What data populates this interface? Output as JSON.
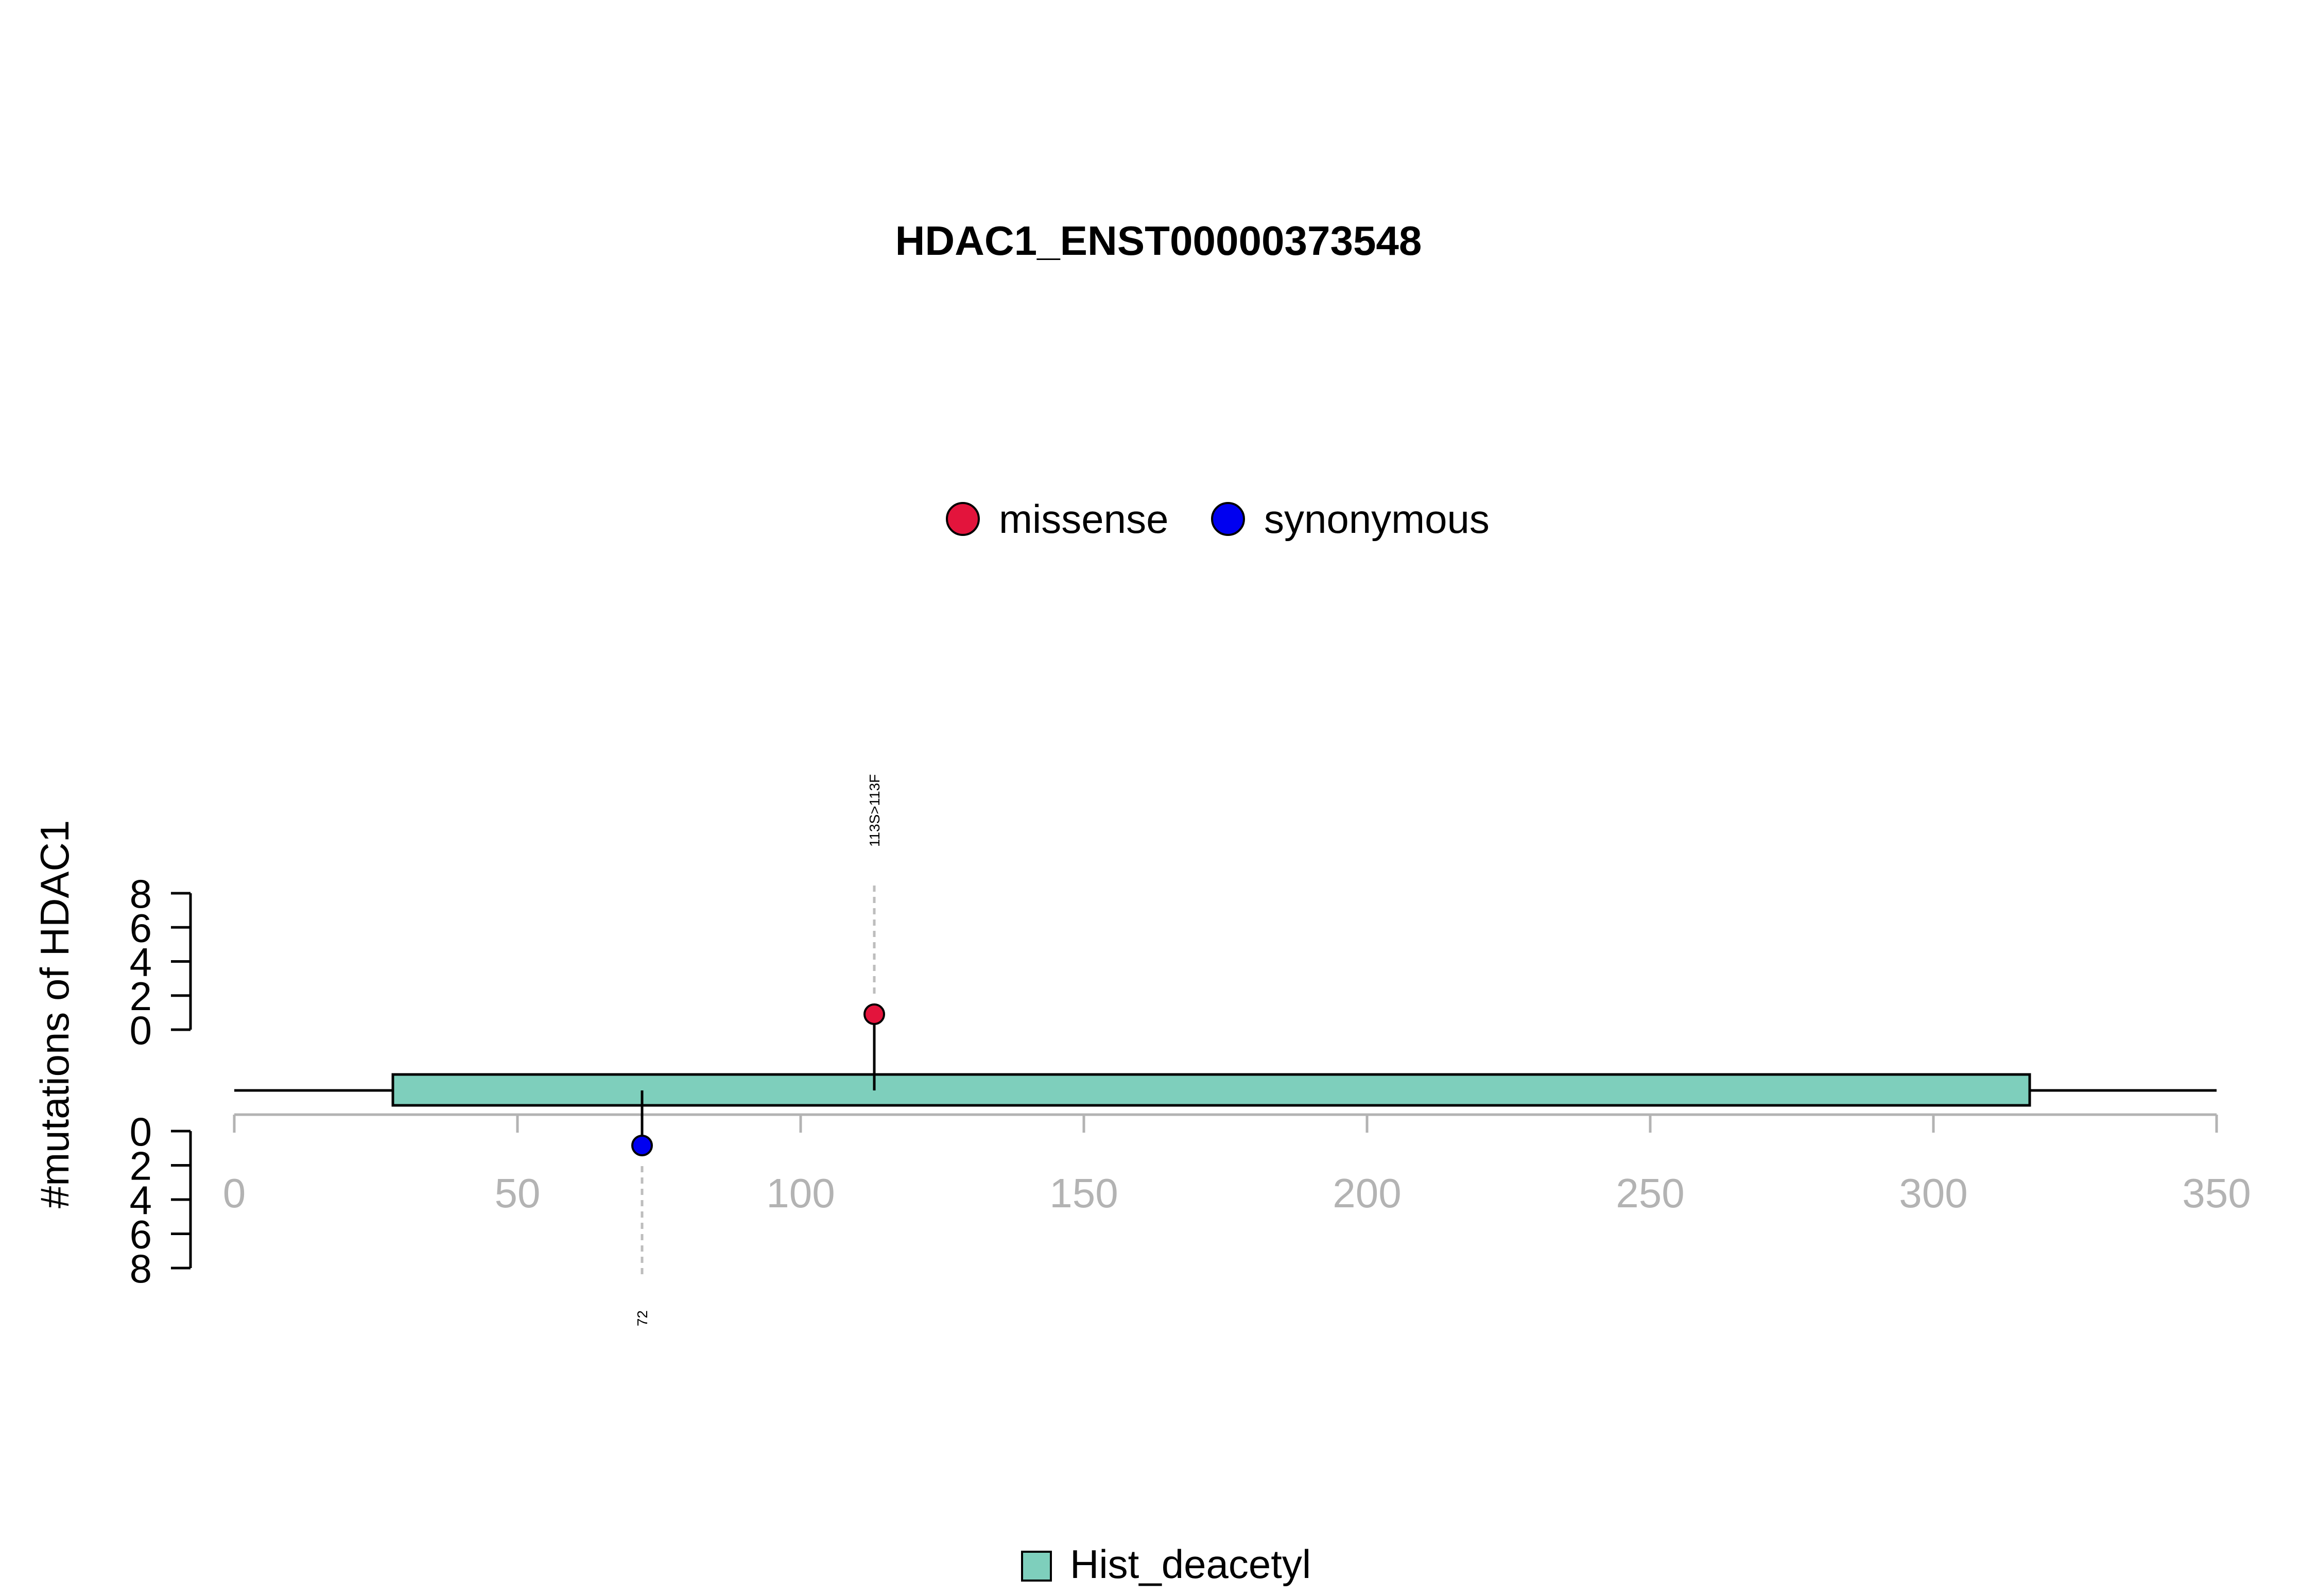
{
  "chart_data": {
    "type": "lollipop",
    "title": "HDAC1_ENST00000373548",
    "ylabel": "#mutations of HDAC1",
    "x_ticks": [
      0,
      50,
      100,
      150,
      200,
      250,
      300,
      350
    ],
    "xlim": [
      0,
      350
    ],
    "y_ticks": [
      0,
      2,
      4,
      6,
      8
    ],
    "ylim": [
      0,
      8
    ],
    "legend_top": [
      {
        "label": "missense",
        "color": "#E3143C"
      },
      {
        "label": "synonymous",
        "color": "#0000F0"
      }
    ],
    "legend_bottom": [
      {
        "label": "Hist_deacetyl",
        "color": "#7ECFBC"
      }
    ],
    "protein_length": 350,
    "domains": [
      {
        "name": "Hist_deacetyl",
        "start": 28,
        "end": 317,
        "color": "#7ECFBC"
      }
    ],
    "mutations": [
      {
        "position": 113,
        "label": "113S>113F",
        "type": "missense",
        "count": 1,
        "side": "top",
        "color": "#E3143C"
      },
      {
        "position": 72,
        "label": "72",
        "type": "synonymous",
        "count": 1,
        "side": "bottom",
        "color": "#0000F0"
      }
    ]
  }
}
